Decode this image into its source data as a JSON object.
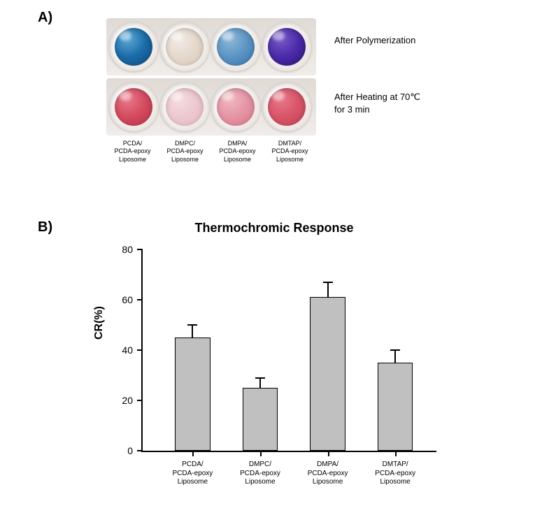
{
  "panelA": {
    "label": "A)",
    "row1_condition": "After Polymerization",
    "row2_condition_line1": "After Heating at  70",
    "row2_condition_degree": "℃",
    "row2_condition_line2": "for 3 min",
    "wells_row1": [
      {
        "color": "radial-gradient(circle at 35% 30%, #5ba8d4, #1a6aa8, #0d4d82)"
      },
      {
        "color": "radial-gradient(circle at 35% 30%, #f2ebe5, #e5d8cc, #d8c8b8)"
      },
      {
        "color": "radial-gradient(circle at 35% 30%, #8db8d8, #5a94c4, #3a74a8)"
      },
      {
        "color": "radial-gradient(circle at 35% 30%, #7858c8, #4a2aa8, #2a1578)"
      }
    ],
    "wells_row2": [
      {
        "color": "radial-gradient(circle at 35% 30%, #e87888, #d44a5e, #b83344)"
      },
      {
        "color": "radial-gradient(circle at 35% 30%, #f5dce0, #edc8d0, #e5b8c2)"
      },
      {
        "color": "radial-gradient(circle at 35% 30%, #f0b8c2, #e594a4, #d87888)"
      },
      {
        "color": "radial-gradient(circle at 35% 30%, #e87888, #d85468, #c44052)"
      }
    ],
    "well_labels": [
      {
        "line1": "PCDA/",
        "line2": "PCDA-epoxy",
        "line3": "Liposome"
      },
      {
        "line1": "DMPC/",
        "line2": "PCDA-epoxy",
        "line3": "Liposome"
      },
      {
        "line1": "DMPA/",
        "line2": "PCDA-epoxy",
        "line3": "Liposome"
      },
      {
        "line1": "DMTAP/",
        "line2": "PCDA-epoxy",
        "line3": "Liposome"
      }
    ]
  },
  "panelB": {
    "label": "B)",
    "title": "Thermochromic Response",
    "y_axis_label": "CR(%)",
    "y_max": 80,
    "y_ticks": [
      {
        "value": 0,
        "label": "0"
      },
      {
        "value": 20,
        "label": "20"
      },
      {
        "value": 40,
        "label": "40"
      },
      {
        "value": 60,
        "label": "60"
      },
      {
        "value": 80,
        "label": "80"
      }
    ],
    "bars": [
      {
        "value": 45,
        "error": 5,
        "label_line1": "PCDA/",
        "label_line2": "PCDA-epoxy",
        "label_line3": "Liposome"
      },
      {
        "value": 25,
        "error": 4,
        "label_line1": "DMPC/",
        "label_line2": "PCDA-epoxy",
        "label_line3": "Liposome"
      },
      {
        "value": 61,
        "error": 6,
        "label_line1": "DMPA/",
        "label_line2": "PCDA-epoxy",
        "label_line3": "Liposome"
      },
      {
        "value": 35,
        "error": 5,
        "label_line1": "DMTAP/",
        "label_line2": "PCDA-epoxy",
        "label_line3": "Liposome"
      }
    ],
    "bar_color": "#c0c0c0",
    "axis_color": "#000000",
    "bar_width_pct": 12,
    "bar_positions_pct": [
      17,
      40,
      63,
      86
    ]
  }
}
